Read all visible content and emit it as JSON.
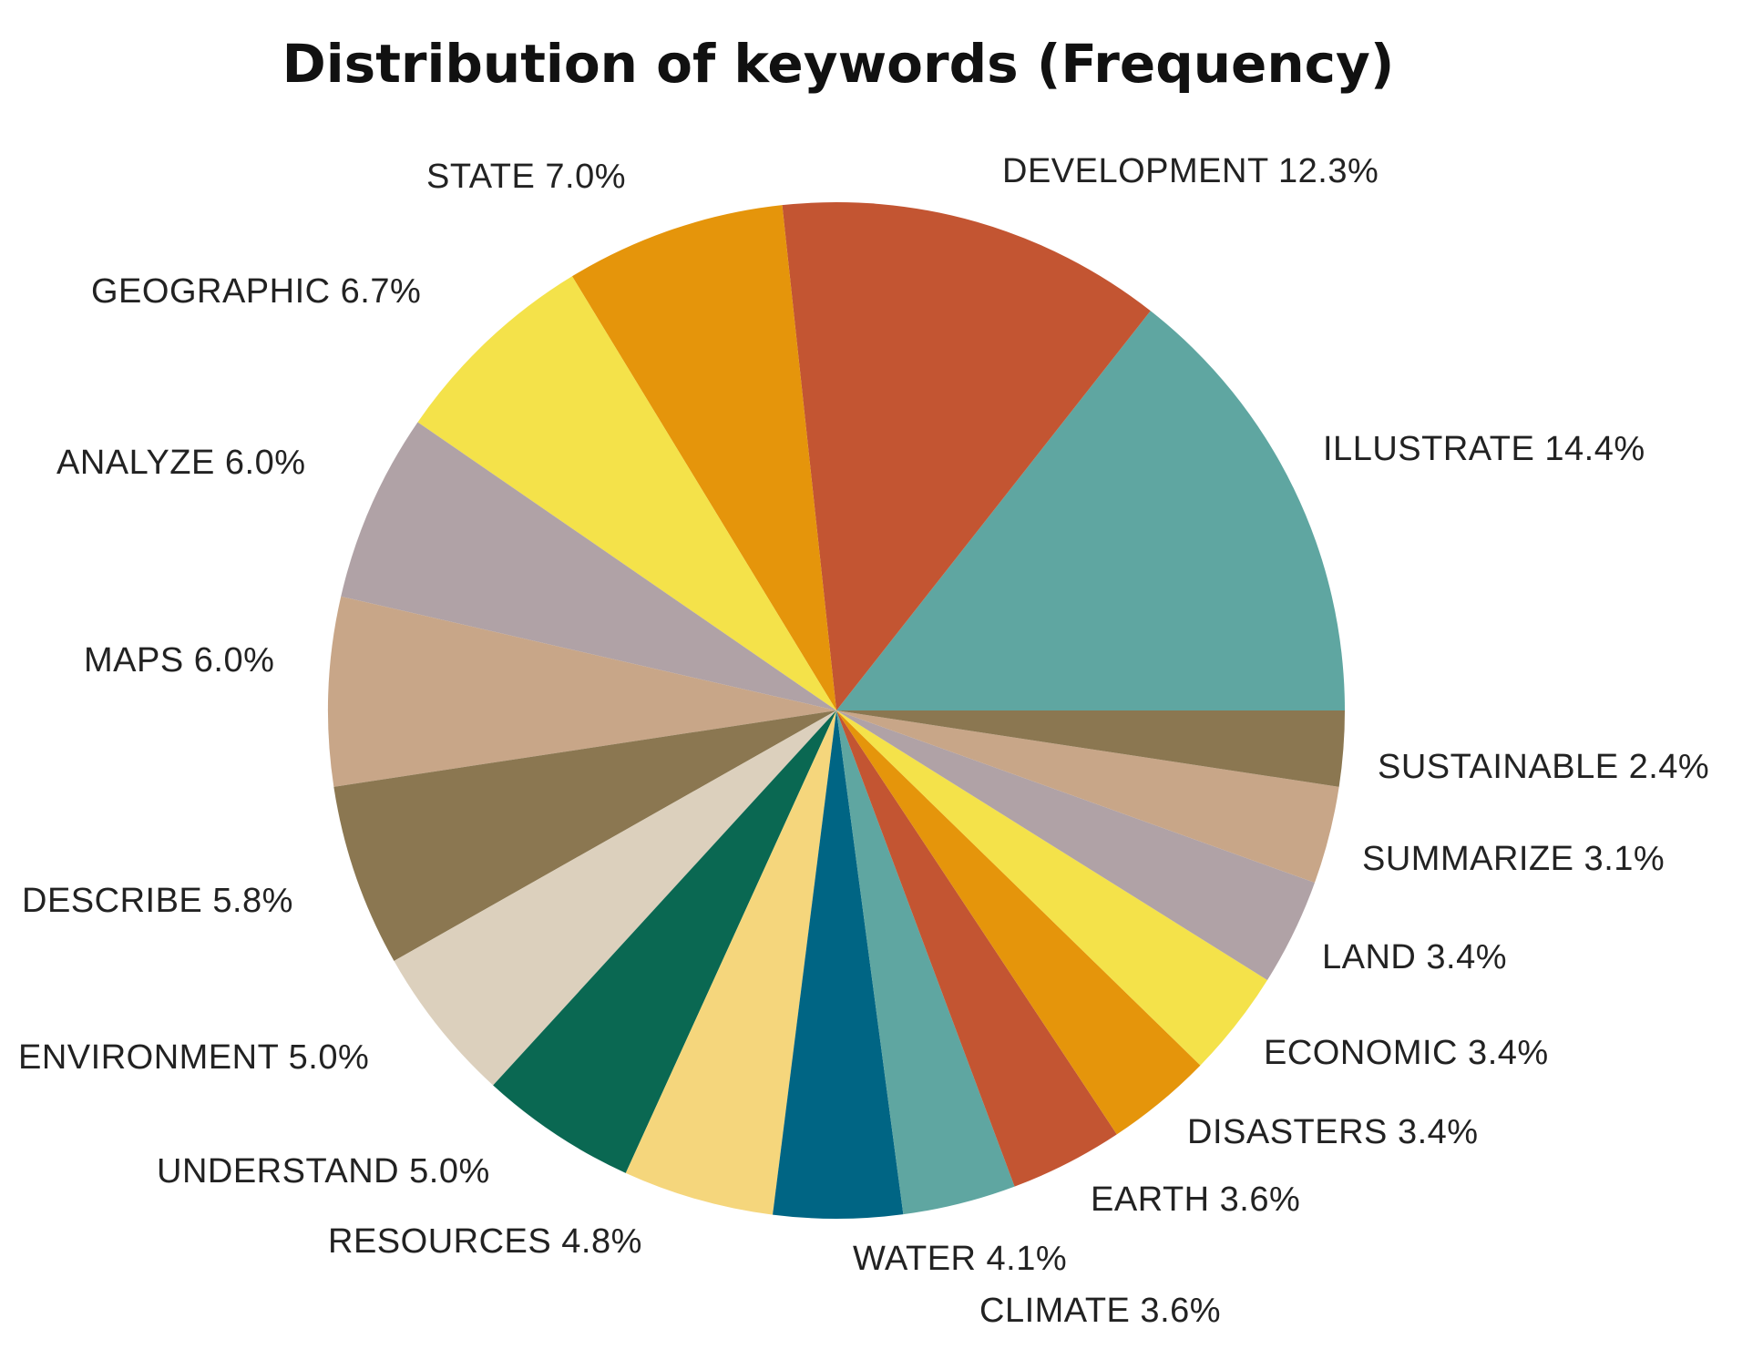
{
  "chart_data": {
    "type": "pie",
    "title": "Distribution of keywords (Frequency)",
    "slices": [
      {
        "label": "ILLUSTRATE",
        "value": 14.4,
        "value_label": "14.4%",
        "color": "#5fa6a1"
      },
      {
        "label": "DEVELOPMENT",
        "value": 12.3,
        "value_label": "12.3%",
        "color": "#c35532"
      },
      {
        "label": "STATE",
        "value": 7.0,
        "value_label": "7.0%",
        "color": "#e5950b"
      },
      {
        "label": "GEOGRAPHIC",
        "value": 6.7,
        "value_label": "6.7%",
        "color": "#f4e24a"
      },
      {
        "label": "ANALYZE",
        "value": 6.0,
        "value_label": "6.0%",
        "color": "#b0a2a6"
      },
      {
        "label": "MAPS",
        "value": 6.0,
        "value_label": "6.0%",
        "color": "#c8a688"
      },
      {
        "label": "DESCRIBE",
        "value": 5.8,
        "value_label": "5.8%",
        "color": "#8b7751"
      },
      {
        "label": "ENVIRONMENT",
        "value": 5.0,
        "value_label": "5.0%",
        "color": "#dcd0bd"
      },
      {
        "label": "UNDERSTAND",
        "value": 5.0,
        "value_label": "5.0%",
        "color": "#0a6852"
      },
      {
        "label": "RESOURCES",
        "value": 4.8,
        "value_label": "4.8%",
        "color": "#f5d67c"
      },
      {
        "label": "WATER",
        "value": 4.1,
        "value_label": "4.1%",
        "color": "#006584"
      },
      {
        "label": "CLIMATE",
        "value": 3.6,
        "value_label": "3.6%",
        "color": "#5fa6a1"
      },
      {
        "label": "EARTH",
        "value": 3.6,
        "value_label": "3.6%",
        "color": "#c35532"
      },
      {
        "label": "DISASTERS",
        "value": 3.4,
        "value_label": "3.4%",
        "color": "#e5950b"
      },
      {
        "label": "ECONOMIC",
        "value": 3.4,
        "value_label": "3.4%",
        "color": "#f4e24a"
      },
      {
        "label": "LAND",
        "value": 3.4,
        "value_label": "3.4%",
        "color": "#b0a2a6"
      },
      {
        "label": "SUMMARIZE",
        "value": 3.1,
        "value_label": "3.1%",
        "color": "#c8a688"
      },
      {
        "label": "SUSTAINABLE",
        "value": 2.4,
        "value_label": "2.4%",
        "color": "#8b7751"
      }
    ],
    "start_angle": "3 o'clock",
    "direction": "counterclockwise",
    "legend": "none"
  }
}
